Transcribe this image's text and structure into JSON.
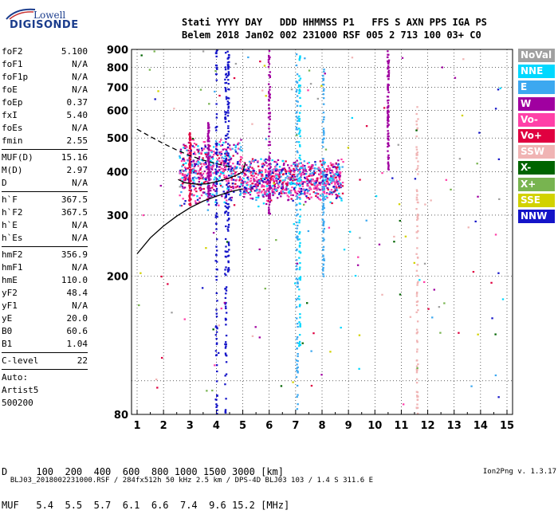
{
  "logo": {
    "line1": "Lowell",
    "line2": "DIGISONDE"
  },
  "header": {
    "labels": "Stati YYYY DAY   DDD HHMMSS P1   FFS S AXN PPS IGA PS",
    "values": "Belem 2018 Jan02 002 231000 RSF 005 2 713 100 03+ C0"
  },
  "params": [
    {
      "k": "foF2",
      "v": "5.100"
    },
    {
      "k": "foF1",
      "v": "N/A"
    },
    {
      "k": "foF1p",
      "v": "N/A"
    },
    {
      "k": "foE",
      "v": "N/A"
    },
    {
      "k": "foEp",
      "v": "0.37"
    },
    {
      "k": "fxI",
      "v": "5.40"
    },
    {
      "k": "foEs",
      "v": "N/A"
    },
    {
      "k": "fmin",
      "v": "2.55"
    },
    {
      "sep": true
    },
    {
      "k": "MUF(D)",
      "v": "15.16"
    },
    {
      "k": "M(D)",
      "v": "2.97"
    },
    {
      "k": "D",
      "v": "N/A"
    },
    {
      "sep": true
    },
    {
      "k": "h`F",
      "v": "367.5"
    },
    {
      "k": "h`F2",
      "v": "367.5"
    },
    {
      "k": "h`E",
      "v": "N/A"
    },
    {
      "k": "h`Es",
      "v": "N/A"
    },
    {
      "sep": true
    },
    {
      "k": "hmF2",
      "v": "356.9"
    },
    {
      "k": "hmF1",
      "v": "N/A"
    },
    {
      "k": "hmE",
      "v": "110.0"
    },
    {
      "k": "yF2",
      "v": "48.4"
    },
    {
      "k": "yF1",
      "v": "N/A"
    },
    {
      "k": "yE",
      "v": "20.0"
    },
    {
      "k": "B0",
      "v": "60.6"
    },
    {
      "k": "B1",
      "v": "1.04"
    },
    {
      "sep": true
    },
    {
      "k": "C-level",
      "v": "22"
    },
    {
      "sep": true
    },
    {
      "k": "Auto:",
      "v": ""
    },
    {
      "k": "Artist5",
      "v": ""
    },
    {
      "k": "500200",
      "v": ""
    }
  ],
  "legend": [
    {
      "label": "NoVal",
      "color": "#a0a0a0"
    },
    {
      "label": "NNE",
      "color": "#00d8ff"
    },
    {
      "label": "E",
      "color": "#3ca8f0"
    },
    {
      "label": "W",
      "color": "#a000a0"
    },
    {
      "label": "Vo-",
      "color": "#ff40a8"
    },
    {
      "label": "Vo+",
      "color": "#e00040"
    },
    {
      "label": "SSW",
      "color": "#f0b4b4"
    },
    {
      "label": "X-",
      "color": "#006400"
    },
    {
      "label": "X+",
      "color": "#78b450"
    },
    {
      "label": "SSE",
      "color": "#d2d200"
    },
    {
      "label": "NNW",
      "color": "#1414c8"
    }
  ],
  "bottom": {
    "d_row": "D     100  200  400  600  800 1000 1500 3000 [km]",
    "muf_row": "MUF   5.4  5.5  5.7  6.1  6.6  7.4  9.6 15.2 [MHz]"
  },
  "footer": {
    "left": "BLJ03_2018002231000.RSF / 284fx512h 50 kHz 2.5 km / DPS-4D BLJ03 103 / 1.4 S 311.6 E",
    "right": "Ion2Png v. 1.3.17"
  },
  "chart_data": {
    "type": "scatter",
    "xlim": [
      1,
      15
    ],
    "ylim": [
      80,
      900
    ],
    "y_scale": "log",
    "x_ticks": [
      1,
      2,
      3,
      4,
      5,
      6,
      7,
      8,
      9,
      10,
      11,
      12,
      13,
      14,
      15
    ],
    "y_ticks": [
      80,
      100,
      200,
      300,
      400,
      500,
      600,
      700,
      800,
      900
    ],
    "grid": true,
    "series": [
      {
        "name": "O-trace profile (solid)",
        "style": "solid",
        "x": [
          1.0,
          1.5,
          2.0,
          2.5,
          3.0,
          3.5,
          4.0,
          4.5,
          5.0
        ],
        "y": [
          232,
          258,
          279,
          298,
          315,
          329,
          340,
          350,
          356.9
        ]
      },
      {
        "name": "Extrapolated topside (dashed)",
        "style": "dashed",
        "x": [
          1.0,
          1.5,
          2.0,
          2.5,
          3.0,
          3.5,
          4.0,
          4.5
        ],
        "y": [
          530,
          505,
          482,
          462,
          445,
          432,
          422,
          413
        ]
      },
      {
        "name": "O-trace virtual height (solid)",
        "style": "solid",
        "x": [
          2.55,
          2.8,
          3.0,
          3.3,
          3.6,
          3.9,
          4.2,
          4.5,
          4.8,
          5.0,
          5.1
        ],
        "y": [
          380,
          372,
          370,
          368,
          369,
          373,
          378,
          384,
          392,
          400,
          425
        ]
      }
    ]
  }
}
